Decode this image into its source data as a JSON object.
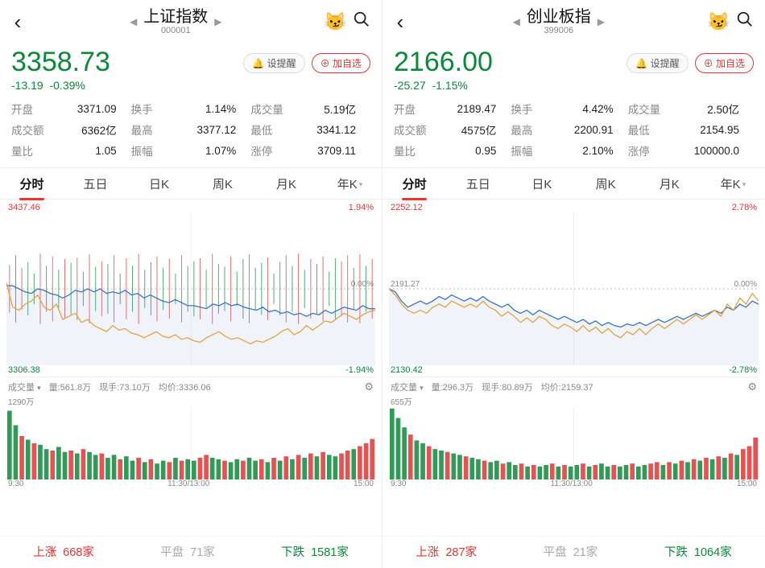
{
  "colors": {
    "up": "#e33333",
    "down": "#0a8a3a",
    "neutral": "#888888",
    "blue_line": "#3a74c4",
    "orange_line": "#e6a23c",
    "grid": "#f0f0f0",
    "mid_line": "#bbbbbb"
  },
  "panels": [
    {
      "title": "上证指数",
      "code": "000001",
      "price": "3358.73",
      "price_color": "down",
      "change": "-13.19",
      "change_pct": "-0.39%",
      "remind_label": "设提醒",
      "add_label": "加自选",
      "stats": [
        [
          {
            "l": "开盘",
            "v": "3371.09",
            "c": "down"
          },
          {
            "l": "换手",
            "v": "1.14%",
            "c": ""
          },
          {
            "l": "成交量",
            "v": "5.19亿",
            "c": ""
          }
        ],
        [
          {
            "l": "成交额",
            "v": "6362亿",
            "c": ""
          },
          {
            "l": "最高",
            "v": "3377.12",
            "c": "up"
          },
          {
            "l": "最低",
            "v": "3341.12",
            "c": "down"
          }
        ],
        [
          {
            "l": "量比",
            "v": "1.05",
            "c": ""
          },
          {
            "l": "振幅",
            "v": "1.07%",
            "c": ""
          },
          {
            "l": "涨停",
            "v": "3709.11",
            "c": "up"
          }
        ]
      ],
      "tabs": [
        "分时",
        "五日",
        "日K",
        "周K",
        "月K",
        "年K"
      ],
      "tab_active": 0,
      "chart": {
        "top_left": "3437.46",
        "top_right": "1.94%",
        "mid_left": "",
        "mid_right": "0.00%",
        "bot_left": "3306.38",
        "bot_right": "-1.94%",
        "blue": [
          0.52,
          0.52,
          0.5,
          0.48,
          0.47,
          0.5,
          0.49,
          0.47,
          0.46,
          0.44,
          0.46,
          0.49,
          0.48,
          0.5,
          0.48,
          0.5,
          0.47,
          0.48,
          0.47,
          0.49,
          0.46,
          0.47,
          0.44,
          0.46,
          0.44,
          0.42,
          0.41,
          0.43,
          0.41,
          0.39,
          0.39,
          0.38,
          0.37,
          0.4,
          0.39,
          0.41,
          0.39,
          0.4,
          0.38,
          0.37,
          0.36,
          0.38,
          0.35,
          0.36,
          0.34,
          0.35,
          0.33,
          0.34,
          0.32,
          0.34,
          0.33,
          0.36,
          0.34,
          0.36,
          0.38,
          0.37,
          0.36,
          0.39,
          0.37,
          0.37
        ],
        "orange": [
          0.54,
          0.38,
          0.36,
          0.4,
          0.42,
          0.46,
          0.38,
          0.36,
          0.4,
          0.3,
          0.32,
          0.34,
          0.28,
          0.3,
          0.26,
          0.24,
          0.22,
          0.26,
          0.23,
          0.24,
          0.21,
          0.2,
          0.18,
          0.2,
          0.22,
          0.19,
          0.18,
          0.2,
          0.17,
          0.18,
          0.16,
          0.15,
          0.18,
          0.2,
          0.22,
          0.19,
          0.17,
          0.18,
          0.16,
          0.14,
          0.16,
          0.15,
          0.17,
          0.19,
          0.22,
          0.24,
          0.2,
          0.22,
          0.26,
          0.23,
          0.26,
          0.29,
          0.28,
          0.31,
          0.34,
          0.32,
          0.3,
          0.33,
          0.35,
          0.36
        ],
        "bars": [
          0.62,
          0.88,
          0.55,
          0.7,
          0.4,
          0.92,
          0.6,
          0.85,
          0.5,
          0.78,
          0.68,
          0.82,
          0.45,
          0.9,
          0.58,
          0.72,
          0.65,
          0.88,
          0.4,
          0.8,
          0.6,
          0.92,
          0.5,
          0.7,
          0.85,
          0.55,
          0.78,
          0.4,
          0.88,
          0.6,
          0.72,
          0.8,
          0.5,
          0.92,
          0.65,
          0.58,
          0.85,
          0.45,
          0.78,
          0.9,
          0.55,
          0.68,
          0.82,
          0.4,
          0.7,
          0.88,
          0.6,
          0.92,
          0.5,
          0.78,
          0.65,
          0.85,
          0.45,
          0.8,
          0.72,
          0.88,
          0.55,
          0.9,
          0.6,
          0.78
        ],
        "bars_color": [
          "u",
          "d",
          "u",
          "d",
          "d",
          "u",
          "d",
          "u",
          "d",
          "u",
          "d",
          "u",
          "d",
          "u",
          "d",
          "u",
          "d",
          "u",
          "d",
          "u",
          "d",
          "u",
          "d",
          "d",
          "u",
          "d",
          "u",
          "d",
          "u",
          "d",
          "d",
          "u",
          "d",
          "u",
          "d",
          "d",
          "u",
          "d",
          "d",
          "u",
          "d",
          "d",
          "u",
          "d",
          "d",
          "u",
          "d",
          "u",
          "d",
          "u",
          "d",
          "u",
          "d",
          "d",
          "u",
          "u",
          "d",
          "u",
          "d",
          "u"
        ]
      },
      "vol": {
        "header_label": "成交量",
        "liang": "量:561.8万",
        "xianshou": "现手:73.10万",
        "junjia": "均价:3336.06",
        "max": "1290万",
        "bars": [
          0.95,
          0.75,
          0.6,
          0.55,
          0.5,
          0.48,
          0.42,
          0.4,
          0.45,
          0.38,
          0.4,
          0.36,
          0.42,
          0.38,
          0.34,
          0.36,
          0.3,
          0.34,
          0.28,
          0.32,
          0.26,
          0.3,
          0.24,
          0.28,
          0.22,
          0.26,
          0.24,
          0.3,
          0.26,
          0.28,
          0.26,
          0.3,
          0.34,
          0.3,
          0.28,
          0.26,
          0.24,
          0.28,
          0.26,
          0.3,
          0.26,
          0.28,
          0.24,
          0.3,
          0.26,
          0.32,
          0.28,
          0.34,
          0.3,
          0.36,
          0.32,
          0.38,
          0.34,
          0.32,
          0.36,
          0.4,
          0.42,
          0.46,
          0.5,
          0.56
        ],
        "bars_color": [
          "d",
          "d",
          "u",
          "d",
          "u",
          "d",
          "d",
          "u",
          "d",
          "d",
          "u",
          "d",
          "u",
          "d",
          "d",
          "u",
          "d",
          "d",
          "u",
          "d",
          "d",
          "u",
          "d",
          "u",
          "d",
          "d",
          "u",
          "d",
          "u",
          "d",
          "d",
          "u",
          "u",
          "d",
          "d",
          "u",
          "d",
          "d",
          "u",
          "d",
          "d",
          "u",
          "d",
          "u",
          "d",
          "u",
          "d",
          "u",
          "d",
          "u",
          "d",
          "u",
          "d",
          "d",
          "u",
          "u",
          "d",
          "u",
          "u",
          "u"
        ],
        "times": [
          "9:30",
          "11:30/13:00",
          "15:00"
        ]
      },
      "footer": {
        "up_l": "上涨",
        "up_v": "668家",
        "flat_l": "平盘",
        "flat_v": "71家",
        "down_l": "下跌",
        "down_v": "1581家"
      }
    },
    {
      "title": "创业板指",
      "code": "399006",
      "price": "2166.00",
      "price_color": "down",
      "change": "-25.27",
      "change_pct": "-1.15%",
      "remind_label": "设提醒",
      "add_label": "加自选",
      "stats": [
        [
          {
            "l": "开盘",
            "v": "2189.47",
            "c": "down"
          },
          {
            "l": "换手",
            "v": "4.42%",
            "c": ""
          },
          {
            "l": "成交量",
            "v": "2.50亿",
            "c": ""
          }
        ],
        [
          {
            "l": "成交额",
            "v": "4575亿",
            "c": ""
          },
          {
            "l": "最高",
            "v": "2200.91",
            "c": "up"
          },
          {
            "l": "最低",
            "v": "2154.95",
            "c": "down"
          }
        ],
        [
          {
            "l": "量比",
            "v": "0.95",
            "c": ""
          },
          {
            "l": "振幅",
            "v": "2.10%",
            "c": ""
          },
          {
            "l": "涨停",
            "v": "100000.0",
            "c": "up"
          }
        ]
      ],
      "tabs": [
        "分时",
        "五日",
        "日K",
        "周K",
        "月K",
        "年K"
      ],
      "tab_active": 0,
      "chart": {
        "top_left": "2252.12",
        "top_right": "2.78%",
        "mid_left": "2191.27",
        "mid_right": "0.00%",
        "bot_left": "2130.42",
        "bot_right": "-2.78%",
        "blue": [
          0.5,
          0.48,
          0.42,
          0.38,
          0.4,
          0.42,
          0.4,
          0.42,
          0.45,
          0.43,
          0.46,
          0.44,
          0.42,
          0.44,
          0.42,
          0.45,
          0.42,
          0.4,
          0.38,
          0.4,
          0.36,
          0.34,
          0.36,
          0.33,
          0.36,
          0.34,
          0.32,
          0.3,
          0.32,
          0.3,
          0.28,
          0.3,
          0.27,
          0.29,
          0.26,
          0.28,
          0.26,
          0.25,
          0.27,
          0.26,
          0.28,
          0.26,
          0.28,
          0.3,
          0.28,
          0.3,
          0.32,
          0.3,
          0.32,
          0.34,
          0.32,
          0.34,
          0.36,
          0.34,
          0.38,
          0.36,
          0.4,
          0.38,
          0.42,
          0.4
        ],
        "orange": [
          0.5,
          0.46,
          0.4,
          0.36,
          0.34,
          0.36,
          0.34,
          0.38,
          0.4,
          0.38,
          0.42,
          0.4,
          0.38,
          0.4,
          0.38,
          0.42,
          0.38,
          0.36,
          0.32,
          0.35,
          0.32,
          0.28,
          0.31,
          0.28,
          0.32,
          0.3,
          0.26,
          0.24,
          0.27,
          0.25,
          0.22,
          0.26,
          0.22,
          0.25,
          0.21,
          0.24,
          0.2,
          0.18,
          0.22,
          0.2,
          0.24,
          0.2,
          0.24,
          0.27,
          0.24,
          0.27,
          0.3,
          0.27,
          0.3,
          0.33,
          0.3,
          0.33,
          0.36,
          0.32,
          0.4,
          0.36,
          0.44,
          0.4,
          0.47,
          0.42
        ],
        "bars": [],
        "bars_color": []
      },
      "vol": {
        "header_label": "成交量",
        "liang": "量:296.3万",
        "xianshou": "现手:80.89万",
        "junjia": "均价:2159.37",
        "max": "655万",
        "bars": [
          0.98,
          0.85,
          0.72,
          0.62,
          0.54,
          0.5,
          0.46,
          0.42,
          0.4,
          0.38,
          0.36,
          0.34,
          0.32,
          0.3,
          0.28,
          0.26,
          0.24,
          0.26,
          0.22,
          0.24,
          0.2,
          0.22,
          0.18,
          0.2,
          0.18,
          0.2,
          0.22,
          0.18,
          0.2,
          0.18,
          0.2,
          0.22,
          0.18,
          0.2,
          0.22,
          0.18,
          0.2,
          0.18,
          0.2,
          0.22,
          0.18,
          0.2,
          0.22,
          0.24,
          0.2,
          0.24,
          0.22,
          0.26,
          0.24,
          0.28,
          0.26,
          0.3,
          0.28,
          0.32,
          0.3,
          0.36,
          0.34,
          0.42,
          0.46,
          0.58
        ],
        "bars_color": [
          "d",
          "d",
          "d",
          "u",
          "d",
          "d",
          "u",
          "d",
          "d",
          "u",
          "d",
          "d",
          "u",
          "d",
          "d",
          "u",
          "d",
          "d",
          "u",
          "d",
          "d",
          "u",
          "d",
          "u",
          "d",
          "d",
          "u",
          "d",
          "u",
          "d",
          "d",
          "u",
          "d",
          "u",
          "d",
          "d",
          "u",
          "d",
          "d",
          "u",
          "d",
          "d",
          "u",
          "u",
          "d",
          "u",
          "d",
          "u",
          "d",
          "u",
          "d",
          "u",
          "d",
          "u",
          "d",
          "u",
          "d",
          "u",
          "u",
          "u"
        ],
        "times": [
          "9:30",
          "11:30/13:00",
          "15:00"
        ]
      },
      "footer": {
        "up_l": "上涨",
        "up_v": "287家",
        "flat_l": "平盘",
        "flat_v": "21家",
        "down_l": "下跌",
        "down_v": "1064家"
      }
    }
  ]
}
